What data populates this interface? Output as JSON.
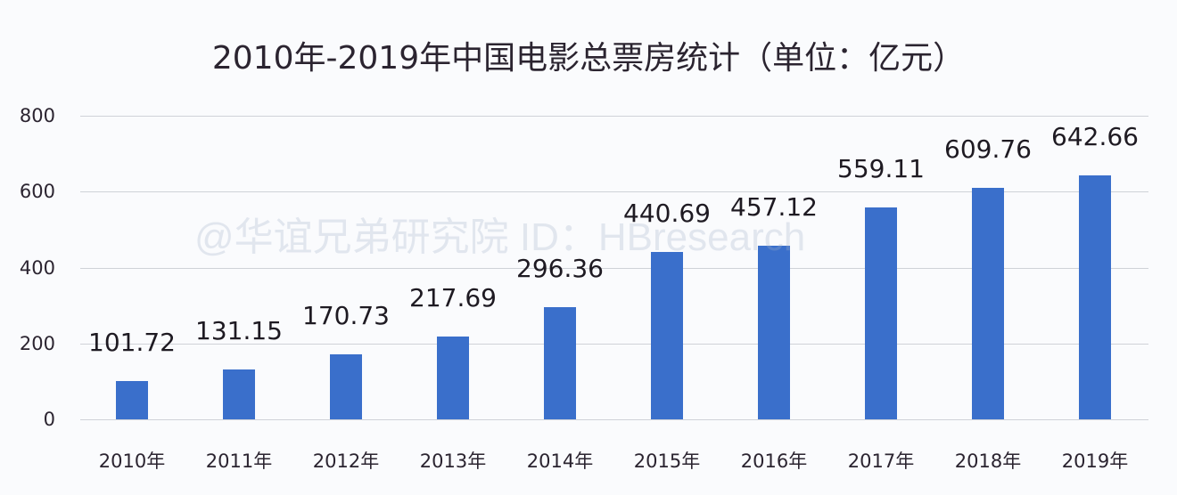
{
  "chart_data": {
    "type": "bar",
    "title": "2010年-2019年中国电影总票房统计（单位：亿元）",
    "xlabel": "",
    "ylabel": "",
    "ylim": [
      0,
      800
    ],
    "yticks": [
      0,
      200,
      400,
      600,
      800
    ],
    "grid": true,
    "legend": "none",
    "categories": [
      "2010年",
      "2011年",
      "2012年",
      "2013年",
      "2014年",
      "2015年",
      "2016年",
      "2017年",
      "2018年",
      "2019年"
    ],
    "values": [
      101.72,
      131.15,
      170.73,
      217.69,
      296.36,
      440.69,
      457.12,
      559.11,
      609.76,
      642.66
    ],
    "value_labels": [
      "101.72",
      "131.15",
      "170.73",
      "217.69",
      "296.36",
      "440.69",
      "457.12",
      "559.11",
      "609.76",
      "642.66"
    ],
    "bar_color": "#3a6fcb"
  },
  "watermark": "@华谊兄弟研究院 ID：HBresearch"
}
